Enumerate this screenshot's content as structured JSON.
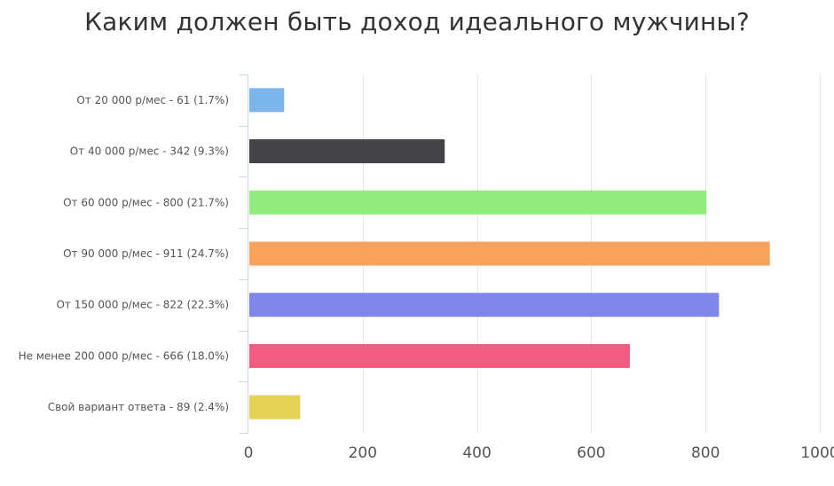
{
  "chart_data": {
    "type": "bar",
    "orientation": "horizontal",
    "title": "Каким должен быть доход идеального мужчины?",
    "categories": [
      "От 20 000 р/мес - 61 (1.7%)",
      "От 40 000 р/мес - 342 (9.3%)",
      "От 60 000 р/мес - 800 (21.7%)",
      "От 90 000 р/мес - 911 (24.7%)",
      "От 150 000 р/мес - 822 (22.3%)",
      "Не менее 200 000 р/мес - 666 (18.0%)",
      "Свой вариант ответа - 89 (2.4%)"
    ],
    "values": [
      61,
      342,
      800,
      911,
      822,
      666,
      89
    ],
    "colors": [
      "#7cb5ec",
      "#434348",
      "#90ed7d",
      "#f7a35c",
      "#8085e9",
      "#f15c80",
      "#e4d354"
    ],
    "xlim": [
      0,
      1000
    ],
    "xticks": [
      0,
      200,
      400,
      600,
      800,
      1000
    ],
    "grid": true,
    "legend": "none"
  }
}
